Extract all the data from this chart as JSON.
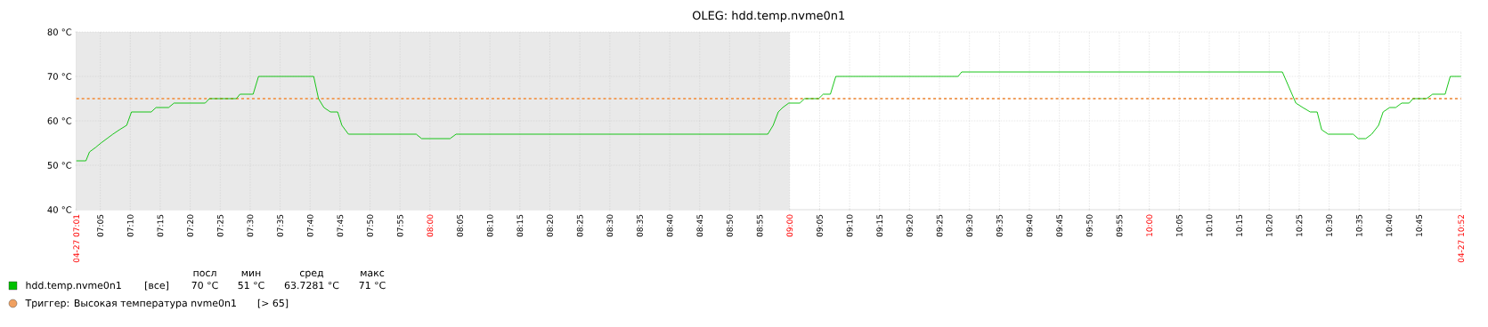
{
  "chart_data": {
    "type": "line",
    "title": "OLEG: hdd.temp.nvme0n1",
    "series": [
      {
        "name": "hdd.temp.nvme0n1",
        "color": "#00c000",
        "x": [
          7.0167,
          7.0433,
          7.0533,
          7.07,
          7.085,
          7.1017,
          7.1183,
          7.1367,
          7.1567,
          7.17,
          7.225,
          7.2383,
          7.2733,
          7.2883,
          7.375,
          7.3867,
          7.4617,
          7.4717,
          7.5083,
          7.5233,
          7.6767,
          7.69,
          7.705,
          7.7233,
          7.7433,
          7.755,
          7.7733,
          7.9617,
          7.9767,
          8.0558,
          8.0725,
          8.9392,
          8.9542,
          8.9683,
          8.9808,
          8.9975,
          9.0283,
          9.0417,
          9.0808,
          9.0933,
          9.1133,
          9.1283,
          9.4683,
          9.4783,
          10.37,
          10.4075,
          10.4267,
          10.4475,
          10.4667,
          10.4792,
          10.4975,
          10.5667,
          10.5808,
          10.6017,
          10.6183,
          10.6375,
          10.65,
          10.6683,
          10.685,
          10.7017,
          10.7225,
          10.7333,
          10.7708,
          10.7875,
          10.8225,
          10.8367,
          10.8667
        ],
        "values": [
          51,
          51,
          53,
          54,
          55,
          56,
          57,
          58,
          59,
          62,
          62,
          63,
          63,
          64,
          64,
          65,
          65,
          66,
          66,
          70,
          70,
          65,
          63,
          62,
          62,
          59,
          57,
          57,
          56,
          56,
          57,
          57,
          59,
          62,
          63,
          64,
          64,
          65,
          65,
          66,
          66,
          70,
          70,
          71,
          71,
          64,
          63,
          62,
          62,
          58,
          57,
          57,
          56,
          56,
          57,
          59,
          62,
          63,
          63,
          64,
          64,
          65,
          65,
          66,
          66,
          70,
          70
        ]
      }
    ],
    "xlim": [
      7.0167,
      10.8667
    ],
    "xticks": [
      {
        "value": 7.0167,
        "label": "04-27 07:01"
      },
      {
        "value": 7.0833,
        "label": "07:05"
      },
      {
        "value": 7.1667,
        "label": "07:10"
      },
      {
        "value": 7.25,
        "label": "07:15"
      },
      {
        "value": 7.3333,
        "label": "07:20"
      },
      {
        "value": 7.4167,
        "label": "07:25"
      },
      {
        "value": 7.5,
        "label": "07:30"
      },
      {
        "value": 7.5833,
        "label": "07:35"
      },
      {
        "value": 7.6667,
        "label": "07:40"
      },
      {
        "value": 7.75,
        "label": "07:45"
      },
      {
        "value": 7.8333,
        "label": "07:50"
      },
      {
        "value": 7.9167,
        "label": "07:55"
      },
      {
        "value": 8,
        "label": "08:00"
      },
      {
        "value": 8.0833,
        "label": "08:05"
      },
      {
        "value": 8.1667,
        "label": "08:10"
      },
      {
        "value": 8.25,
        "label": "08:15"
      },
      {
        "value": 8.3333,
        "label": "08:20"
      },
      {
        "value": 8.4167,
        "label": "08:25"
      },
      {
        "value": 8.5,
        "label": "08:30"
      },
      {
        "value": 8.5833,
        "label": "08:35"
      },
      {
        "value": 8.6667,
        "label": "08:40"
      },
      {
        "value": 8.75,
        "label": "08:45"
      },
      {
        "value": 8.8333,
        "label": "08:50"
      },
      {
        "value": 8.9167,
        "label": "08:55"
      },
      {
        "value": 9,
        "label": "09:00"
      },
      {
        "value": 9.0833,
        "label": "09:05"
      },
      {
        "value": 9.1667,
        "label": "09:10"
      },
      {
        "value": 9.25,
        "label": "09:15"
      },
      {
        "value": 9.3333,
        "label": "09:20"
      },
      {
        "value": 9.4167,
        "label": "09:25"
      },
      {
        "value": 9.5,
        "label": "09:30"
      },
      {
        "value": 9.5833,
        "label": "09:35"
      },
      {
        "value": 9.6667,
        "label": "09:40"
      },
      {
        "value": 9.75,
        "label": "09:45"
      },
      {
        "value": 9.8333,
        "label": "09:50"
      },
      {
        "value": 9.9167,
        "label": "09:55"
      },
      {
        "value": 10,
        "label": "10:00"
      },
      {
        "value": 10.0833,
        "label": "10:05"
      },
      {
        "value": 10.1667,
        "label": "10:10"
      },
      {
        "value": 10.25,
        "label": "10:15"
      },
      {
        "value": 10.3333,
        "label": "10:20"
      },
      {
        "value": 10.4167,
        "label": "10:25"
      },
      {
        "value": 10.5,
        "label": "10:30"
      },
      {
        "value": 10.5833,
        "label": "10:35"
      },
      {
        "value": 10.6667,
        "label": "10:40"
      },
      {
        "value": 10.75,
        "label": "10:45"
      },
      {
        "value": 10.8667,
        "label": "04-27 10:52"
      }
    ],
    "ylim": [
      40,
      80
    ],
    "yticks": [
      {
        "value": 40,
        "label": "40 °C"
      },
      {
        "value": 50,
        "label": "50 °C"
      },
      {
        "value": 60,
        "label": "60 °C"
      },
      {
        "value": 70,
        "label": "70 °C"
      },
      {
        "value": 80,
        "label": "80 °C"
      }
    ],
    "grid": true,
    "legend": "bottom",
    "marker": "none",
    "line_style": "solid",
    "bands": [
      {
        "axis": "x",
        "from": 7.0167,
        "to": 9,
        "color": "#e9e9e9"
      }
    ],
    "ref_lines": [
      {
        "axis": "y",
        "value": 65,
        "label": "Триггер: Высокая температура nvme0n1",
        "color": "#f0a060",
        "line_style": "dashed"
      }
    ],
    "annotations": [
      "[все]",
      "посл",
      "мин",
      "сред",
      "макс",
      "70 °C",
      "51 °C",
      "63.7281 °C",
      "71 °C",
      "[> 65]"
    ]
  }
}
